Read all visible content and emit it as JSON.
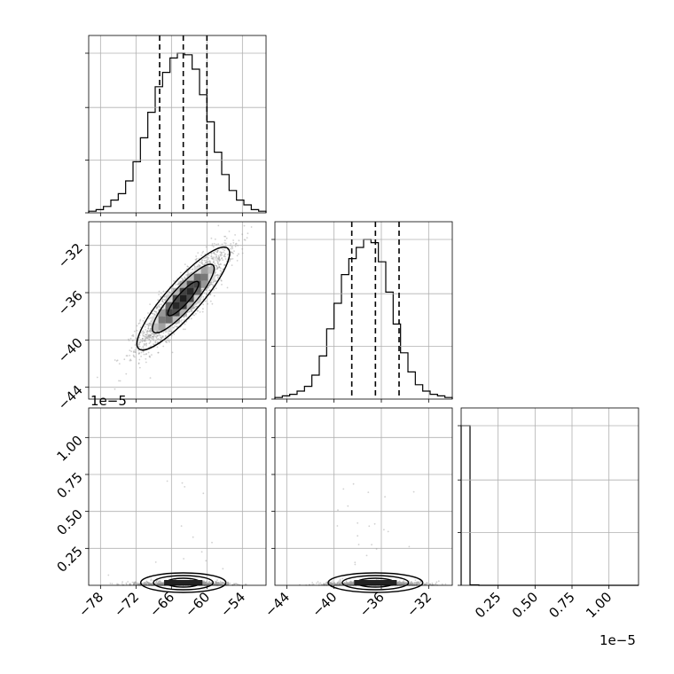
{
  "chart_data": {
    "type": "corner",
    "parameters": [
      {
        "id": "p0",
        "range": [
          -80,
          -50
        ],
        "ticks": [
          -78,
          -72,
          -66,
          -60,
          -54
        ],
        "tick_labels": [
          "−78",
          "−72",
          "−66",
          "−60",
          "−54"
        ],
        "mean": -64,
        "sigma": 3.6,
        "quantiles": [
          -68,
          -64,
          -60
        ],
        "histogram_counts": [
          1,
          2,
          4,
          8,
          12,
          20,
          32,
          47,
          63,
          79,
          88,
          97,
          100,
          99,
          90,
          74,
          57,
          38,
          24,
          14,
          8,
          5,
          2,
          1
        ]
      },
      {
        "id": "p1",
        "range": [
          -45,
          -30
        ],
        "ticks": [
          -44,
          -40,
          -36,
          -32
        ],
        "tick_labels": [
          "−44",
          "−40",
          "−36",
          "−32"
        ],
        "mean": -36.5,
        "sigma": 2.0,
        "quantiles": [
          -38.5,
          -36.5,
          -34.5
        ],
        "histogram_counts": [
          1,
          2,
          3,
          5,
          8,
          15,
          27,
          44,
          60,
          78,
          88,
          95,
          100,
          98,
          86,
          67,
          47,
          29,
          17,
          9,
          5,
          3,
          2,
          1
        ]
      },
      {
        "id": "p2",
        "range": [
          0,
          1.2
        ],
        "scale_offset": "1e−5",
        "ticks": [
          0.25,
          0.5,
          0.75,
          1.0
        ],
        "tick_labels": [
          "0.25",
          "0.50",
          "0.75",
          "1.00"
        ],
        "histogram_counts": [
          100,
          0.3,
          0,
          0,
          0,
          0,
          0,
          0,
          0,
          0,
          0,
          0,
          0,
          0,
          0,
          0,
          0,
          0,
          0,
          0
        ]
      }
    ],
    "correlation_p0_p1": 0.88,
    "contour_sigma_levels": [
      0.5,
      1.0,
      1.5
    ],
    "grid": true
  }
}
